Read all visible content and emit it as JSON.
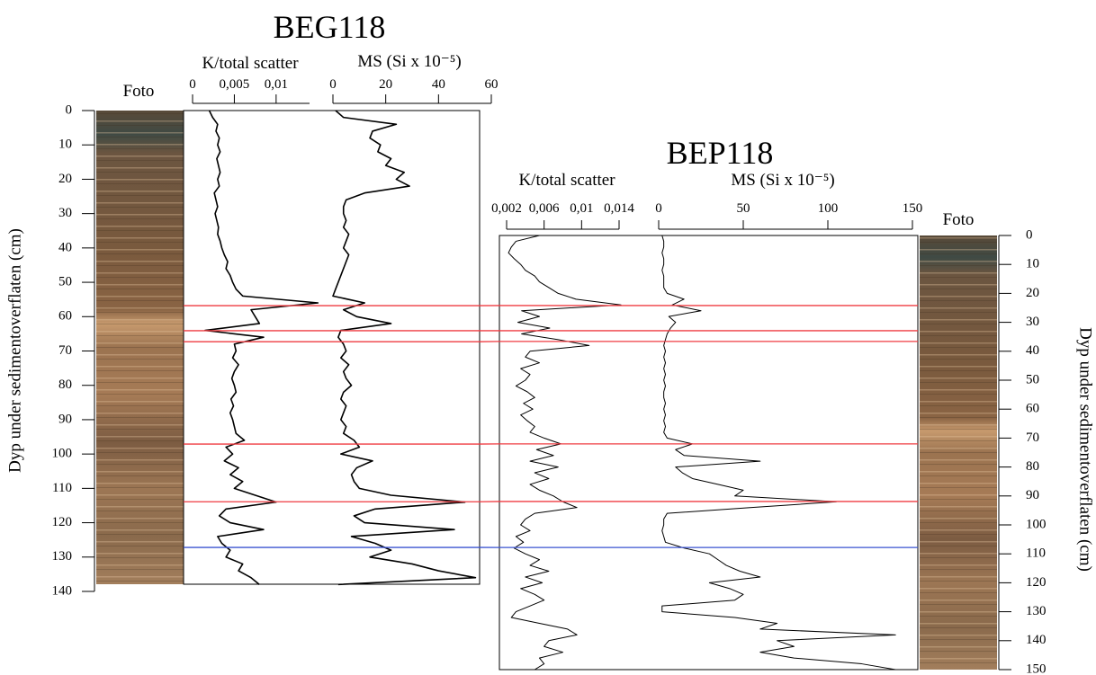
{
  "chart_data": [
    {
      "type": "depth_log",
      "title": "BEG118",
      "photo_label": "Foto",
      "ylabel": "Dyp under sedimentoverflaten (cm)",
      "ylim": [
        0,
        140
      ],
      "yticks": [
        0,
        10,
        20,
        30,
        40,
        50,
        60,
        70,
        80,
        90,
        100,
        110,
        120,
        130,
        140
      ],
      "depths": [
        0,
        2,
        4,
        6,
        8,
        10,
        12,
        14,
        16,
        18,
        20,
        22,
        24,
        26,
        28,
        30,
        32,
        34,
        36,
        38,
        40,
        42,
        44,
        46,
        48,
        50,
        52,
        54,
        56,
        58,
        60,
        62,
        64,
        66,
        68,
        70,
        72,
        74,
        76,
        78,
        80,
        82,
        84,
        86,
        88,
        90,
        92,
        94,
        96,
        98,
        100,
        102,
        104,
        106,
        108,
        110,
        112,
        114,
        116,
        118,
        120,
        122,
        124,
        126,
        128,
        130,
        132,
        134,
        136,
        138
      ],
      "series": [
        {
          "name": "K/total scatter",
          "color": "#000000",
          "xlim": [
            0,
            0.014
          ],
          "xticks": [
            0,
            {
              "value": 0.005,
              "label": "0,005"
            },
            {
              "value": 0.01,
              "label": "0,01"
            }
          ],
          "values": [
            0.002,
            0.0024,
            0.003,
            0.0028,
            0.0032,
            0.003,
            0.0033,
            0.0029,
            0.0031,
            0.0033,
            0.003,
            0.0032,
            0.0026,
            0.0028,
            0.003,
            0.0027,
            0.0029,
            0.0031,
            0.003,
            0.0033,
            0.0035,
            0.0038,
            0.0042,
            0.004,
            0.0045,
            0.0048,
            0.0052,
            0.006,
            0.015,
            0.007,
            0.0075,
            0.008,
            0.0015,
            0.0085,
            0.005,
            0.0052,
            0.0048,
            0.0055,
            0.005,
            0.0047,
            0.005,
            0.0052,
            0.0046,
            0.0049,
            0.0045,
            0.0048,
            0.005,
            0.0052,
            0.0062,
            0.004,
            0.0048,
            0.0038,
            0.0055,
            0.0045,
            0.006,
            0.005,
            0.0075,
            0.01,
            0.004,
            0.0032,
            0.0045,
            0.0085,
            0.003,
            0.0035,
            0.0045,
            0.004,
            0.006,
            0.0055,
            0.007,
            0.008
          ]
        },
        {
          "name": "MS (Si x 10⁻⁵)",
          "color": "#000000",
          "xlim": [
            0,
            60
          ],
          "xticks": [
            0,
            20,
            40,
            60
          ],
          "values": [
            1,
            4,
            24,
            15,
            14,
            18,
            17,
            22,
            20,
            27,
            24,
            29,
            12,
            5,
            4,
            4,
            5,
            4,
            6,
            5,
            4,
            6,
            5,
            4,
            3,
            2,
            1,
            0,
            12,
            4,
            9,
            22,
            3,
            2,
            4,
            5,
            3,
            6,
            4,
            5,
            7,
            4,
            3,
            5,
            4,
            3,
            5,
            4,
            8,
            10,
            3,
            15,
            9,
            7,
            8,
            10,
            22,
            50,
            16,
            8,
            12,
            46,
            7,
            16,
            22,
            14,
            30,
            40,
            54,
            2
          ]
        }
      ]
    },
    {
      "type": "depth_log",
      "title": "BEP118",
      "photo_label": "Foto",
      "ylabel": "Dyp under sedimentoverflaten (cm)",
      "ylim": [
        0,
        150
      ],
      "yticks": [
        0,
        10,
        20,
        30,
        40,
        50,
        60,
        70,
        80,
        90,
        100,
        110,
        120,
        130,
        140,
        150
      ],
      "depths": [
        0,
        2,
        4,
        6,
        8,
        10,
        12,
        14,
        16,
        18,
        20,
        22,
        24,
        26,
        28,
        30,
        32,
        34,
        36,
        38,
        40,
        42,
        44,
        46,
        48,
        50,
        52,
        54,
        56,
        58,
        60,
        62,
        64,
        66,
        68,
        70,
        72,
        74,
        76,
        78,
        80,
        82,
        84,
        86,
        88,
        90,
        92,
        94,
        96,
        98,
        100,
        102,
        104,
        106,
        108,
        110,
        112,
        114,
        116,
        118,
        120,
        122,
        124,
        126,
        128,
        130,
        132,
        134,
        136,
        138,
        140,
        142,
        144,
        146,
        148,
        150
      ],
      "series": [
        {
          "name": "K/total scatter",
          "color": "#000000",
          "xlim": [
            0.002,
            0.014
          ],
          "xticks": [
            {
              "value": 0.002,
              "label": "0,002"
            },
            {
              "value": 0.006,
              "label": "0,006"
            },
            {
              "value": 0.01,
              "label": "0,01"
            },
            {
              "value": 0.014,
              "label": "0,014"
            }
          ],
          "values": [
            0.0055,
            0.003,
            0.0025,
            0.0022,
            0.0028,
            0.0035,
            0.004,
            0.005,
            0.0055,
            0.0065,
            0.0075,
            0.0094,
            0.0142,
            0.0036,
            0.0055,
            0.0032,
            0.0066,
            0.0036,
            0.0075,
            0.0108,
            0.0045,
            0.004,
            0.0055,
            0.0035,
            0.0045,
            0.004,
            0.003,
            0.0042,
            0.005,
            0.0038,
            0.0048,
            0.0035,
            0.0042,
            0.005,
            0.0045,
            0.006,
            0.0078,
            0.0052,
            0.007,
            0.0045,
            0.0075,
            0.005,
            0.0065,
            0.0045,
            0.0055,
            0.007,
            0.008,
            0.0095,
            0.005,
            0.004,
            0.0035,
            0.0045,
            0.003,
            0.0038,
            0.0028,
            0.004,
            0.0055,
            0.0045,
            0.0065,
            0.004,
            0.0058,
            0.0035,
            0.005,
            0.006,
            0.0045,
            0.003,
            0.0025,
            0.0055,
            0.0085,
            0.0095,
            0.0065,
            0.006,
            0.008,
            0.0055,
            0.006,
            0.005
          ]
        },
        {
          "name": "MS (Si x 10⁻⁵)",
          "color": "#000000",
          "xlim": [
            0,
            150
          ],
          "xticks": [
            0,
            50,
            100,
            150
          ],
          "values": [
            2,
            3,
            3,
            2,
            3,
            3,
            2,
            3,
            3,
            3,
            5,
            15,
            8,
            25,
            6,
            10,
            7,
            5,
            4,
            3,
            4,
            3,
            4,
            3,
            4,
            3,
            4,
            3,
            3,
            4,
            3,
            4,
            3,
            4,
            3,
            5,
            20,
            10,
            15,
            60,
            10,
            14,
            20,
            35,
            50,
            45,
            105,
            55,
            5,
            3,
            3,
            2,
            3,
            4,
            15,
            30,
            35,
            40,
            48,
            60,
            30,
            42,
            50,
            45,
            2,
            2,
            45,
            70,
            60,
            140,
            70,
            80,
            60,
            80,
            120,
            140
          ]
        }
      ]
    }
  ],
  "correlations": [
    {
      "color": "#ef3b41",
      "depths": [
        56.8,
        24.2
      ]
    },
    {
      "color": "#ef3b41",
      "depths": [
        64.1,
        32.9
      ]
    },
    {
      "color": "#ef3b41",
      "depths": [
        67.3,
        36.6
      ]
    },
    {
      "color": "#ef3b41",
      "depths": [
        97.1,
        72.0
      ]
    },
    {
      "color": "#ef3b41",
      "depths": [
        113.9,
        91.9
      ]
    },
    {
      "color": "#3a53d0",
      "depths": [
        127.2,
        107.8
      ]
    }
  ]
}
